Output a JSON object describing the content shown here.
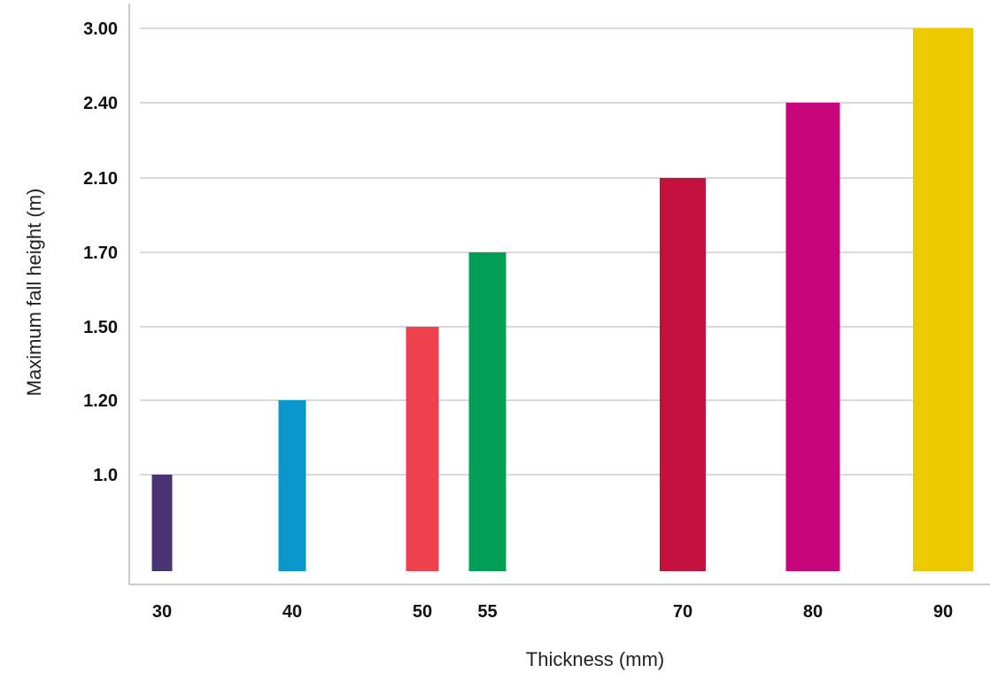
{
  "chart_data": {
    "type": "bar",
    "title": "",
    "xlabel": "Thickness (mm)",
    "ylabel": "Maximum fall height (m)",
    "categories": [
      "30",
      "40",
      "50",
      "55",
      "70",
      "80",
      "90"
    ],
    "x": [
      30,
      40,
      50,
      55,
      70,
      80,
      90
    ],
    "values": [
      1.0,
      1.2,
      1.5,
      1.7,
      2.1,
      2.4,
      3.0
    ],
    "colors": [
      "#4a3372",
      "#0896cc",
      "#ef414d",
      "#009f55",
      "#c41140",
      "#c6067a",
      "#edca00"
    ],
    "yticks": [
      1.0,
      1.2,
      1.5,
      1.7,
      2.1,
      2.4,
      3.0
    ],
    "ytick_labels": [
      "1.0",
      "1.20",
      "1.50",
      "1.70",
      "2.10",
      "2.40",
      "3.00"
    ],
    "y_scale": "categorical-levels",
    "grid": true,
    "gridline_color": "#b5b5b5",
    "axis_color": "#999999",
    "legend": "none"
  }
}
